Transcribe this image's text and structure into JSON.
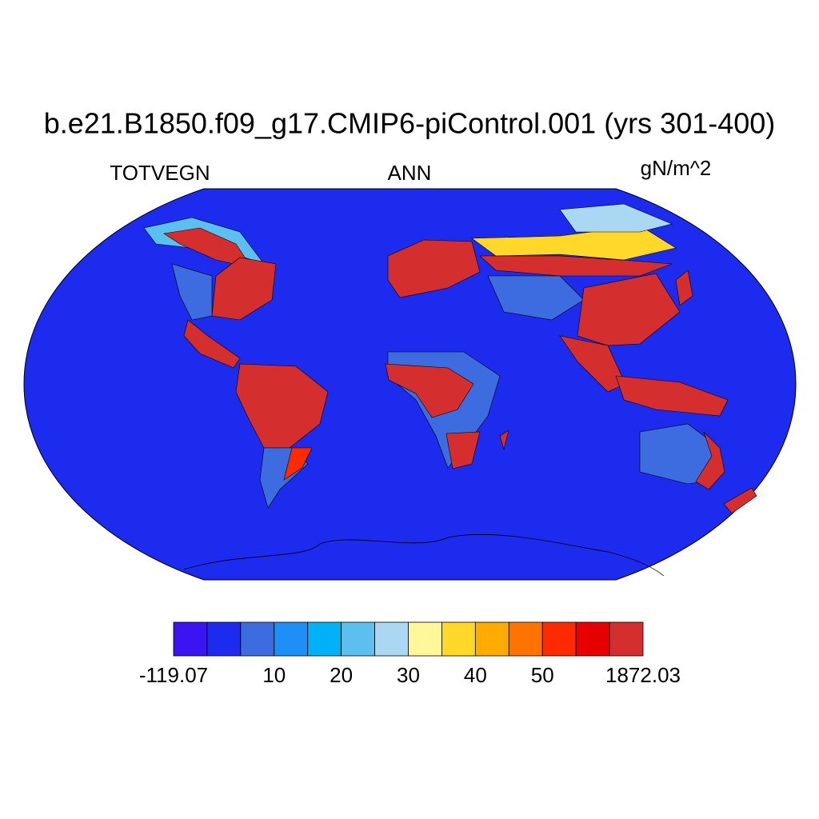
{
  "title": "b.e21.B1850.f09_g17.CMIP6-piControl.001 (yrs 301-400)",
  "left_string": "TOTVEGN",
  "center_string": "ANN",
  "right_string": "gN/m^2",
  "colorbar": {
    "colors": [
      "#3c14f2",
      "#1c2bed",
      "#3d6ce0",
      "#1e8ff7",
      "#00b2f5",
      "#5bbff0",
      "#aad8f2",
      "#fff799",
      "#ffd829",
      "#ffab00",
      "#ff7300",
      "#ff2a00",
      "#e60000",
      "#d42e2e"
    ],
    "boundaries": [
      -119.07,
      null,
      null,
      10,
      null,
      20,
      null,
      30,
      null,
      40,
      null,
      50,
      null,
      null,
      1872.03
    ]
  }
}
